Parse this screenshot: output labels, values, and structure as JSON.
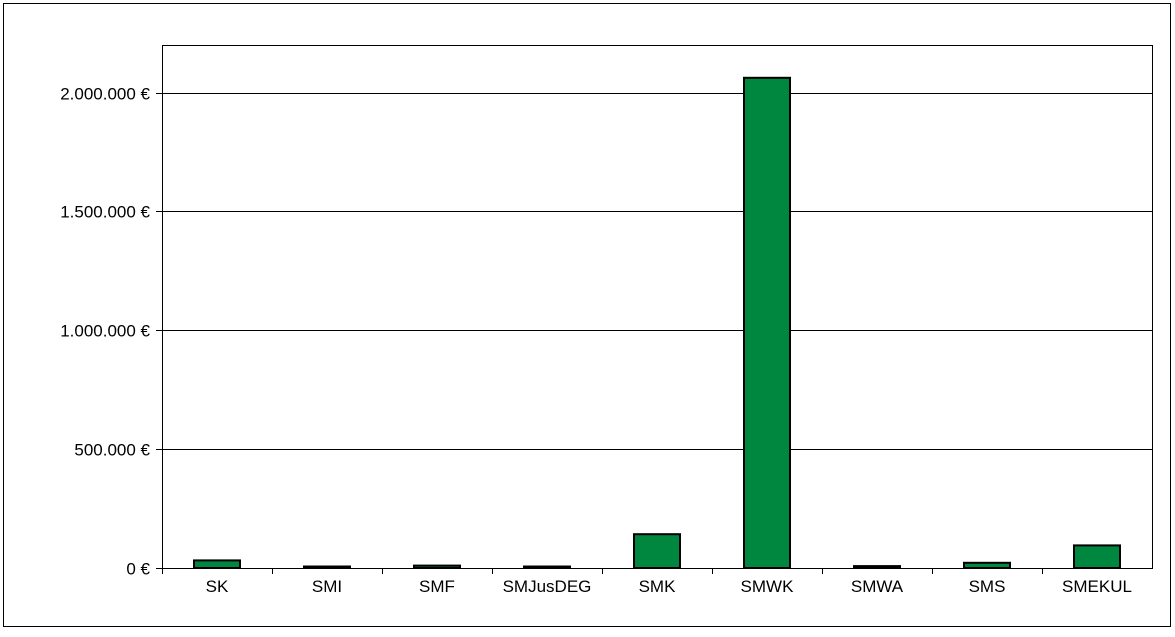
{
  "chart_data": {
    "type": "bar",
    "categories": [
      "SK",
      "SMI",
      "SMF",
      "SMJusDEG",
      "SMK",
      "SMWK",
      "SMWA",
      "SMS",
      "SMEKUL"
    ],
    "values": [
      32000,
      3000,
      10000,
      4000,
      142000,
      2062000,
      8000,
      22000,
      95000
    ],
    "title": "",
    "xlabel": "",
    "ylabel": "",
    "ylim": [
      0,
      2200000
    ],
    "yticks": [
      0,
      500000,
      1000000,
      1500000,
      2000000
    ],
    "ytick_labels": [
      "0 €",
      "500.000 €",
      "1.000.000 €",
      "1.500.000 €",
      "2.000.000 €"
    ],
    "grid": true,
    "legend": "none",
    "colors": {
      "bar_fill": "#00873F",
      "bar_stroke": "#000000",
      "grid": "#000000",
      "frame": "#000000"
    }
  }
}
